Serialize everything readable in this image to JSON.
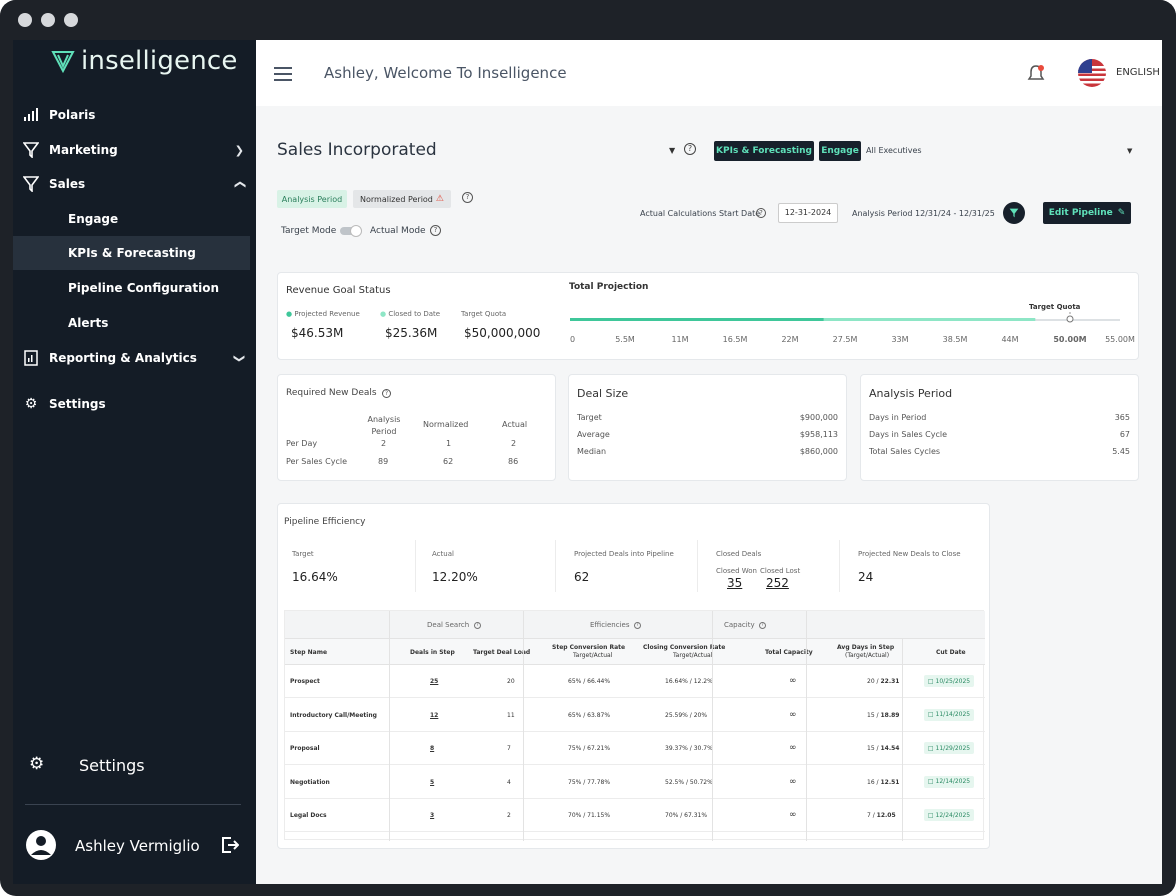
{
  "app": {
    "brand": "inselligence",
    "welcome": "Ashley, Welcome To Inselligence",
    "language": "ENGLISH"
  },
  "sidebar": {
    "items": [
      {
        "label": "Polaris",
        "icon": "signal-icon"
      },
      {
        "label": "Marketing",
        "icon": "filter-icon"
      },
      {
        "label": "Sales",
        "icon": "filter-icon"
      },
      {
        "label": "Engage"
      },
      {
        "label": "KPIs & Forecasting"
      },
      {
        "label": "Pipeline Configuration"
      },
      {
        "label": "Alerts"
      },
      {
        "label": "Reporting & Analytics",
        "icon": "report-icon"
      },
      {
        "label": "Settings",
        "icon": "gear-icon"
      }
    ],
    "bottom_settings": "Settings",
    "user_name": "Ashley Vermiglio"
  },
  "header": {
    "company": "Sales Incorporated",
    "kpi_button": "KPIs & Forecasting",
    "engage_button": "Engage",
    "executives": "All Executives",
    "analysis_period_chip": "Analysis Period",
    "normalized_period_chip": "Normalized Period",
    "calc_start_label": "Actual Calculations Start Date",
    "calc_start_value": "12-31-2024",
    "analysis_range": "Analysis Period 12/31/24 - 12/31/25",
    "edit_pipeline": "Edit Pipeline",
    "target_mode": "Target Mode",
    "actual_mode": "Actual Mode"
  },
  "revenue": {
    "title": "Revenue Goal Status",
    "projected_label": "Projected Revenue",
    "projected_value": "$46.53M",
    "closed_label": "Closed to Date",
    "closed_value": "$25.36M",
    "target_label": "Target Quota",
    "target_value": "$50,000,000",
    "total_projection": "Total Projection",
    "target_quota_marker": "Target Quota"
  },
  "chart_data": {
    "type": "bar",
    "title": "Total Projection",
    "ticks": [
      "0",
      "5.5M",
      "11M",
      "16.5M",
      "22M",
      "27.5M",
      "33M",
      "38.5M",
      "44M",
      "50.00M",
      "55.00M"
    ],
    "closed": 25.36,
    "projected": 46.53,
    "target": 50.0,
    "xlim": [
      0,
      55
    ]
  },
  "required_deals": {
    "title": "Required New Deals",
    "headers": [
      "Analysis Period",
      "Normalized",
      "Actual"
    ],
    "rows": [
      {
        "label": "Per Day",
        "values": [
          "2",
          "1",
          "2"
        ]
      },
      {
        "label": "Per Sales Cycle",
        "values": [
          "89",
          "62",
          "86"
        ]
      }
    ]
  },
  "deal_size": {
    "title": "Deal Size",
    "rows": [
      {
        "label": "Target",
        "value": "$900,000"
      },
      {
        "label": "Average",
        "value": "$958,113"
      },
      {
        "label": "Median",
        "value": "$860,000"
      }
    ]
  },
  "analysis_period": {
    "title": "Analysis Period",
    "rows": [
      {
        "label": "Days in Period",
        "value": "365"
      },
      {
        "label": "Days in Sales Cycle",
        "value": "67"
      },
      {
        "label": "Total Sales Cycles",
        "value": "5.45"
      }
    ]
  },
  "pipeline": {
    "title": "Pipeline Efficiency",
    "target_label": "Target",
    "target_value": "16.64%",
    "actual_label": "Actual",
    "actual_value": "12.20%",
    "projected_label": "Projected Deals into Pipeline",
    "projected_value": "62",
    "closed_label": "Closed Deals",
    "won_label": "Closed Won",
    "won_value": "35",
    "lost_label": "Closed Lost",
    "lost_value": "252",
    "new_label": "Projected New Deals to Close",
    "new_value": "24",
    "groups": [
      "Deal Search",
      "Efficiencies",
      "Capacity"
    ],
    "columns": [
      "Step Name",
      "Deals in Step",
      "Target Deal Load",
      "Step Conversion Rate",
      "Target/Actual",
      "Closing Conversion Rate",
      "Target/Actual",
      "Total Capacity",
      "Avg Days in Step",
      "(Target/Actual)",
      "Cut Date"
    ],
    "steps": [
      {
        "name": "Prospect",
        "deals": "25",
        "load": "20",
        "step_rate": "65% / 66.44%",
        "close_rate": "16.64% / 12.2%",
        "days_t": "20 / ",
        "days_a": "22.31",
        "cut": "10/25/2025"
      },
      {
        "name": "Introductory Call/Meeting",
        "deals": "12",
        "load": "11",
        "step_rate": "65% / 63.87%",
        "close_rate": "25.59% / 20%",
        "days_t": "15 / ",
        "days_a": "18.89",
        "cut": "11/14/2025"
      },
      {
        "name": "Proposal",
        "deals": "8",
        "load": "7",
        "step_rate": "75% / 67.21%",
        "close_rate": "39.37% / 30.7%",
        "days_t": "15 / ",
        "days_a": "14.54",
        "cut": "11/29/2025"
      },
      {
        "name": "Negotiation",
        "deals": "5",
        "load": "4",
        "step_rate": "75% / 77.78%",
        "close_rate": "52.5% / 50.72%",
        "days_t": "16 / ",
        "days_a": "12.51",
        "cut": "12/14/2025"
      },
      {
        "name": "Legal Docs",
        "deals": "3",
        "load": "2",
        "step_rate": "70% / 71.15%",
        "close_rate": "70% / 67.31%",
        "days_t": "7 / ",
        "days_a": "12.05",
        "cut": "12/24/2025"
      }
    ]
  },
  "colors": {
    "sidebar": "#141c26",
    "accent": "#5fe0b9",
    "projection_closed": "#3fc79a",
    "projection_projected": "#8ee6c6"
  }
}
